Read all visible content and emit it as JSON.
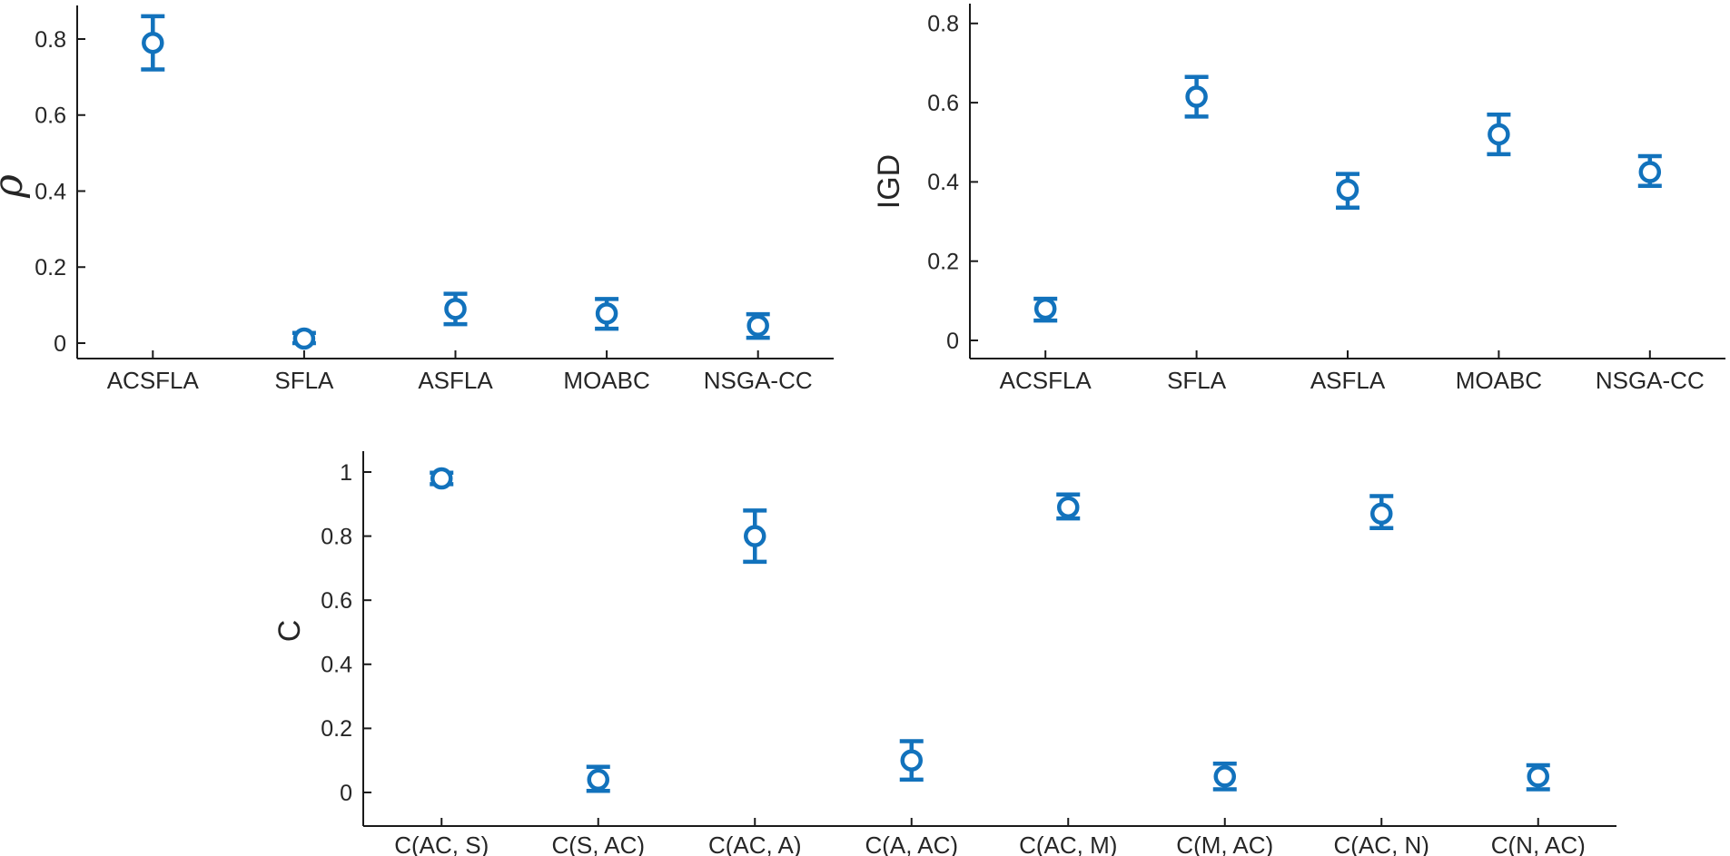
{
  "figure": {
    "background": "#ffffff",
    "accent_color": "#1272bc",
    "axis_color": "#1a1a1a",
    "tick_label_color": "#262626"
  },
  "chart_data": [
    {
      "type": "errorbar",
      "title": "",
      "xlabel": "",
      "ylabel": "ρ",
      "ylabel_style": "italic-serif",
      "categories": [
        "ACSFLA",
        "SFLA",
        "ASFLA",
        "MOABC",
        "NSGA-CC"
      ],
      "values": [
        0.79,
        0.012,
        0.09,
        0.078,
        0.046
      ],
      "err_minus": [
        0.07,
        0.012,
        0.04,
        0.04,
        0.032
      ],
      "err_plus": [
        0.07,
        0.015,
        0.04,
        0.038,
        0.03
      ],
      "yticks": [
        0,
        0.2,
        0.4,
        0.6,
        0.8
      ],
      "ytick_labels": [
        "0",
        "0.2",
        "0.4",
        "0.6",
        "0.8"
      ],
      "ylim": [
        -0.04,
        0.89
      ],
      "grid": false,
      "legend": null,
      "marker": "circle"
    },
    {
      "type": "errorbar",
      "title": "",
      "xlabel": "",
      "ylabel": "IGD",
      "ylabel_style": "plain",
      "categories": [
        "ACSFLA",
        "SFLA",
        "ASFLA",
        "MOABC",
        "NSGA-CC"
      ],
      "values": [
        0.08,
        0.615,
        0.38,
        0.52,
        0.425
      ],
      "err_minus": [
        0.03,
        0.05,
        0.045,
        0.05,
        0.035
      ],
      "err_plus": [
        0.025,
        0.05,
        0.04,
        0.05,
        0.04
      ],
      "yticks": [
        0,
        0.2,
        0.4,
        0.6,
        0.8
      ],
      "ytick_labels": [
        "0",
        "0.2",
        "0.4",
        "0.6",
        "0.8"
      ],
      "ylim": [
        -0.045,
        0.85
      ],
      "grid": false,
      "legend": null,
      "marker": "circle"
    },
    {
      "type": "errorbar",
      "title": "",
      "xlabel": "",
      "ylabel": "C",
      "ylabel_style": "plain",
      "categories": [
        "C(AC, S)",
        "C(S, AC)",
        "C(AC, A)",
        "C(A, AC)",
        "C(AC, M)",
        "C(M, AC)",
        "C(AC, N)",
        "C(N, AC)"
      ],
      "values": [
        0.98,
        0.04,
        0.8,
        0.1,
        0.89,
        0.05,
        0.87,
        0.05
      ],
      "err_minus": [
        0.018,
        0.035,
        0.08,
        0.06,
        0.035,
        0.04,
        0.045,
        0.04
      ],
      "err_plus": [
        0.018,
        0.04,
        0.08,
        0.06,
        0.04,
        0.04,
        0.055,
        0.035
      ],
      "yticks": [
        0,
        0.2,
        0.4,
        0.6,
        0.8,
        1
      ],
      "ytick_labels": [
        "0",
        "0.2",
        "0.4",
        "0.6",
        "0.8",
        "1"
      ],
      "ylim": [
        -0.1,
        1.06
      ],
      "grid": false,
      "legend": null,
      "marker": "circle"
    }
  ]
}
